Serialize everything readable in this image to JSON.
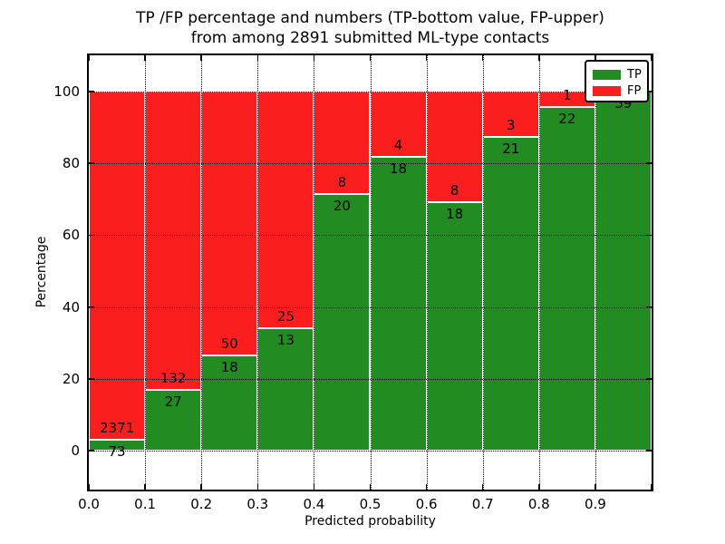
{
  "figure": {
    "title_line1": "TP /FP percentage and numbers (TP-bottom value, FP-upper)",
    "title_line2": "from among 2891 submitted ML-type contacts"
  },
  "chart_data": {
    "type": "bar",
    "subtype": "stacked-percentage-histogram",
    "title": "TP /FP percentage and numbers (TP-bottom value, FP-upper) from among 2891 submitted ML-type contacts",
    "xlabel": "Predicted probability",
    "ylabel": "Percentage",
    "total_submitted": 2891,
    "xlim": [
      0.0,
      1.0
    ],
    "ylim": [
      -11,
      110.5
    ],
    "bin_width": 0.1,
    "bin_starts": [
      0.0,
      0.1,
      0.2,
      0.3,
      0.4,
      0.5,
      0.6,
      0.7,
      0.8,
      0.9
    ],
    "x_tick_labels": [
      "0.0",
      "0.1",
      "0.2",
      "0.3",
      "0.4",
      "0.5",
      "0.6",
      "0.7",
      "0.8",
      "0.9"
    ],
    "y_ticks": [
      0,
      20,
      40,
      60,
      80,
      100
    ],
    "grid": true,
    "series": [
      {
        "name": "TP",
        "color": "#228b22",
        "values": [
          73,
          27,
          18,
          13,
          20,
          18,
          18,
          21,
          22,
          59
        ]
      },
      {
        "name": "FP",
        "color": "#fb1e1e",
        "values": [
          2371,
          132,
          50,
          25,
          8,
          4,
          8,
          3,
          1,
          0
        ]
      }
    ],
    "tp_percentages": [
      2.99,
      16.98,
      26.47,
      34.21,
      71.43,
      81.82,
      69.23,
      87.5,
      95.65,
      100.0
    ],
    "legend": {
      "position": "upper right",
      "entries": [
        {
          "label": "TP",
          "color": "#228b22"
        },
        {
          "label": "FP",
          "color": "#fb1e1e"
        }
      ]
    }
  }
}
